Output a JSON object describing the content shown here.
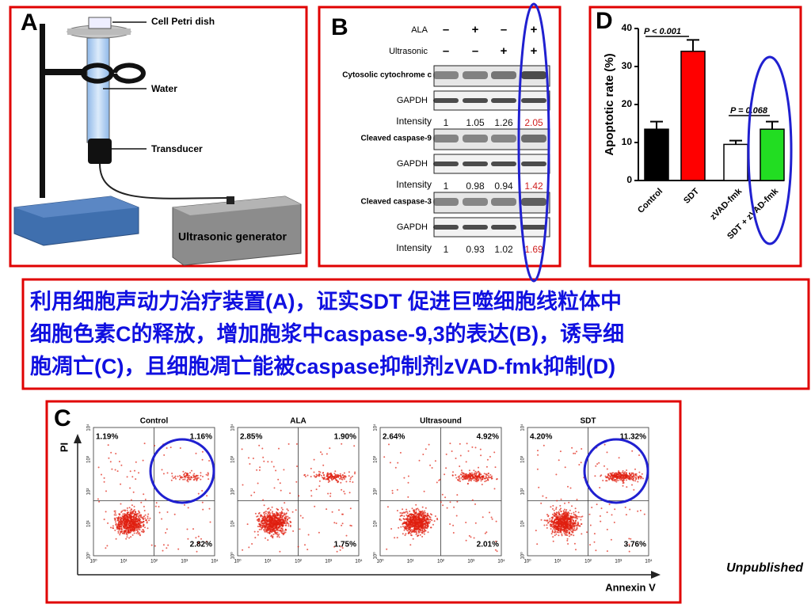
{
  "panel_a": {
    "letter": "A",
    "labels": [
      "Cell Petri dish",
      "Water",
      "Transducer",
      "Ultrasonic generator"
    ]
  },
  "panel_b": {
    "letter": "B",
    "treatments": [
      {
        "name": "ALA",
        "signs": [
          "–",
          "+",
          "–",
          "+"
        ]
      },
      {
        "name": "Ultrasonic",
        "signs": [
          "–",
          "–",
          "+",
          "+"
        ]
      }
    ],
    "blots": [
      {
        "protein": "Cytosolic cytochrome c",
        "control": "GAPDH",
        "intensity_label": "Intensity",
        "intensities": [
          1,
          1.05,
          1.26,
          2.05
        ]
      },
      {
        "protein": "Cleaved caspase-9",
        "control": "GAPDH",
        "intensity_label": "Intensity",
        "intensities": [
          1,
          0.98,
          0.94,
          1.42
        ]
      },
      {
        "protein": "Cleaved caspase-3",
        "control": "GAPDH",
        "intensity_label": "Intensity",
        "intensities": [
          1,
          0.93,
          1.02,
          1.69
        ]
      }
    ]
  },
  "panel_d": {
    "letter": "D",
    "type": "bar",
    "ylabel": "Apoptotic rate (%)",
    "categories": [
      "Control",
      "SDT",
      "zVAD-fmk",
      "SDT + zVAD-fmk"
    ],
    "values": [
      13.5,
      34,
      9.5,
      13.5
    ],
    "errors": [
      2,
      3,
      1,
      2
    ],
    "colors": [
      "#000000",
      "#ff0000",
      "#ffffff",
      "#22dd22"
    ],
    "ylim": [
      0,
      40
    ],
    "yticks": [
      0,
      10,
      20,
      30,
      40
    ],
    "annotations": [
      "P < 0.001",
      "P = 0.068"
    ]
  },
  "caption": [
    "利用细胞声动力治疗装置(A)，证实SDT 促进巨噬细胞线粒体中",
    "细胞色素C的释放，增加胞浆中caspase-9,3的表达(B)，诱导细",
    "胞凋亡(C)，且细胞凋亡能被caspase抑制剂zVAD-fmk抑制(D)"
  ],
  "panel_c": {
    "letter": "C",
    "y_axis": "PI",
    "x_axis": "Annexin V",
    "ticks": [
      "10⁰",
      "10¹",
      "10²",
      "10³",
      "10⁴"
    ],
    "plots": [
      {
        "title": "Control",
        "quadrants": [
          "1.19%",
          "1.16%",
          "2.82%"
        ]
      },
      {
        "title": "ALA",
        "quadrants": [
          "2.85%",
          "1.90%",
          "1.75%"
        ]
      },
      {
        "title": "Ultrasound",
        "quadrants": [
          "2.64%",
          "4.92%",
          "2.01%"
        ]
      },
      {
        "title": "SDT",
        "quadrants": [
          "4.20%",
          "11.32%",
          "3.76%"
        ]
      }
    ]
  },
  "footer": "Unpublished"
}
